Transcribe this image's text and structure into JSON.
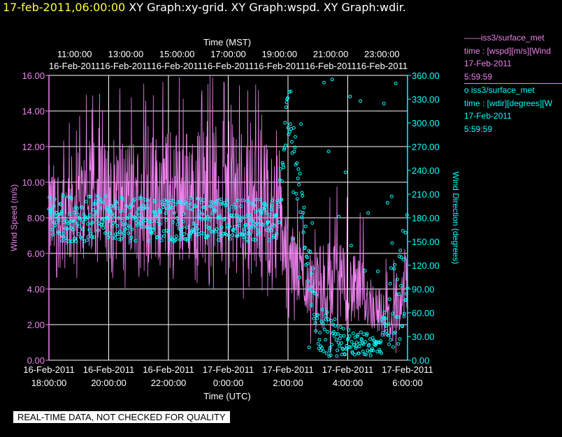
{
  "header": {
    "timestamp": "17-feb-2011,06:00:00",
    "rest": " XY Graph:xy-grid.  XY Graph:wspd.  XY Graph:wdir."
  },
  "legend": {
    "wspd_line1": "——iss3/surface_met",
    "wspd_line2": "time : [wspd][m/s][Wind",
    "wspd_line3": "17-Feb-2011",
    "wspd_line4": "5:59:59",
    "wdir_line1": "o  iss3/surface_met",
    "wdir_line2": "time : [wdir][degrees][W",
    "wdir_line3": "17-Feb-2011",
    "wdir_line4": "5:59:59"
  },
  "qc_banner": "REAL-TIME DATA, NOT CHECKED FOR QUALITY",
  "colors": {
    "wspd": "#ee82ee",
    "wdir": "#00ffff",
    "grid": "#ffffff",
    "header_ts": "#ffff33"
  },
  "chart_data": {
    "type": "line",
    "title": "",
    "top_axis": {
      "label": "Time (MST)",
      "ticks": [
        {
          "time": "11:00:00",
          "date": "16-Feb-2011"
        },
        {
          "time": "13:00:00",
          "date": "16-Feb-2011"
        },
        {
          "time": "15:00:00",
          "date": "16-Feb-2011"
        },
        {
          "time": "17:00:00",
          "date": "16-Feb-2011"
        },
        {
          "time": "19:00:00",
          "date": "16-Feb-2011"
        },
        {
          "time": "21:00:00",
          "date": "16-Feb-2011"
        },
        {
          "time": "23:00:00",
          "date": "16-Feb-2011"
        }
      ]
    },
    "bottom_axis": {
      "label": "Time (UTC)",
      "ticks": [
        {
          "date": "16-Feb-2011",
          "time": "18:00:00"
        },
        {
          "date": "16-Feb-2011",
          "time": "20:00:00"
        },
        {
          "date": "16-Feb-2011",
          "time": "22:00:00"
        },
        {
          "date": "17-Feb-2011",
          "time": "0:00:00"
        },
        {
          "date": "17-Feb-2011",
          "time": "2:00:00"
        },
        {
          "date": "17-Feb-2011",
          "time": "4:00:00"
        },
        {
          "date": "17-Feb-2011",
          "time": "6:00:00"
        }
      ],
      "range_hours_utc": [
        "2011-02-16 18:00",
        "2011-02-17 06:00"
      ]
    },
    "left_axis": {
      "label": "Wind Speed (m/s)",
      "ylim": [
        0,
        16
      ],
      "ticks": [
        "0.00",
        "2.00",
        "4.00",
        "6.00",
        "8.00",
        "10.00",
        "12.00",
        "14.00",
        "16.00"
      ]
    },
    "right_axis": {
      "label": "Wind Direction (degrees)",
      "ylim": [
        0,
        360
      ],
      "ticks": [
        "0.00",
        "30.00",
        "60.00",
        "90.00",
        "120.00",
        "150.00",
        "180.00",
        "210.00",
        "240.00",
        "270.00",
        "300.00",
        "330.00",
        "360.00"
      ]
    },
    "grid": true,
    "series": [
      {
        "name": "iss3/surface_met time : [wspd][m/s]",
        "axis": "left",
        "style": "line",
        "approx_profile": [
          {
            "time_utc": "2011-02-16 18:00",
            "low": 5.0,
            "high": 11.0
          },
          {
            "time_utc": "2011-02-16 20:00",
            "low": 5.5,
            "high": 12.5
          },
          {
            "time_utc": "2011-02-16 22:00",
            "low": 5.5,
            "high": 13.0
          },
          {
            "time_utc": "2011-02-17 00:00",
            "low": 5.0,
            "high": 13.5
          },
          {
            "time_utc": "2011-02-17 01:40",
            "low": 4.5,
            "high": 12.0
          },
          {
            "time_utc": "2011-02-17 02:00",
            "low": 3.5,
            "high": 8.0
          },
          {
            "time_utc": "2011-02-17 02:40",
            "low": 2.5,
            "high": 6.0
          },
          {
            "time_utc": "2011-02-17 03:30",
            "low": 1.5,
            "high": 7.0
          },
          {
            "time_utc": "2011-02-17 04:30",
            "low": 2.0,
            "high": 5.5
          },
          {
            "time_utc": "2011-02-17 05:30",
            "low": 1.0,
            "high": 3.0
          },
          {
            "time_utc": "2011-02-17 06:00",
            "low": 2.5,
            "high": 7.0
          }
        ]
      },
      {
        "name": "iss3/surface_met time : [wdir][degrees]",
        "axis": "right",
        "style": "points",
        "approx_profile": [
          {
            "time_utc": "2011-02-16 18:00",
            "low": 150,
            "high": 210
          },
          {
            "time_utc": "2011-02-16 22:00",
            "low": 150,
            "high": 205
          },
          {
            "time_utc": "2011-02-17 01:40",
            "low": 150,
            "high": 205
          },
          {
            "time_utc": "2011-02-17 02:00",
            "low": 290,
            "high": 355
          },
          {
            "time_utc": "2011-02-17 03:00",
            "low": 5,
            "high": 70
          },
          {
            "time_utc": "2011-02-17 04:00",
            "low": 5,
            "high": 40
          },
          {
            "time_utc": "2011-02-17 05:00",
            "low": 5,
            "high": 30
          },
          {
            "time_utc": "2011-02-17 06:00",
            "low": 20,
            "high": 200
          }
        ]
      }
    ]
  }
}
